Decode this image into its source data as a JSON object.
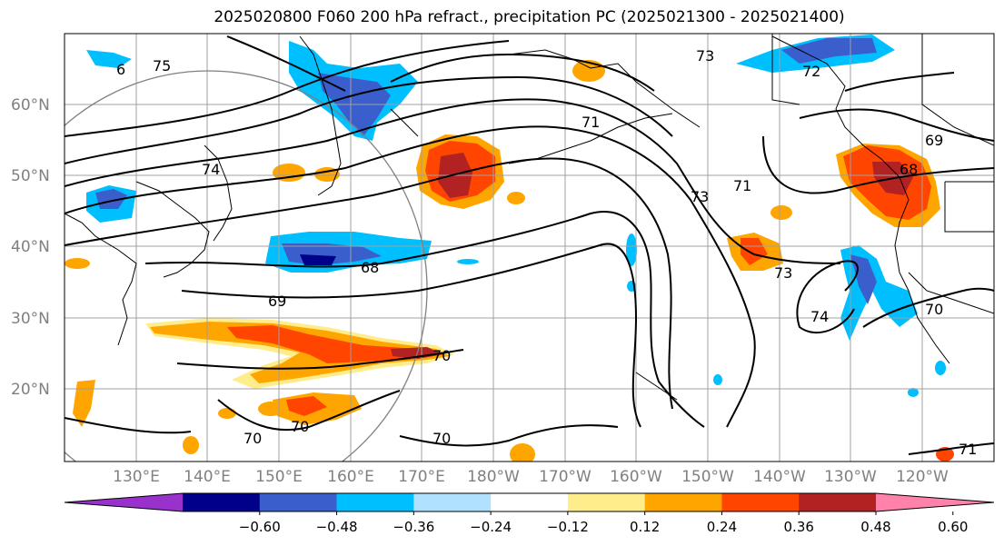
{
  "title": "2025020800 F060 200 hPa refract., precipitation PC (2025021300 - 2025021400)",
  "lat_labels": [
    "60°N",
    "50°N",
    "40°N",
    "30°N",
    "20°N"
  ],
  "lon_labels": [
    "130°E",
    "140°E",
    "150°E",
    "160°E",
    "170°E",
    "180°W",
    "170°W",
    "160°W",
    "150°W",
    "140°W",
    "130°W",
    "120°W"
  ],
  "contour_labels": [
    "6",
    "75",
    "74",
    "73",
    "72",
    "71",
    "73",
    "71",
    "69",
    "68",
    "73",
    "74",
    "70",
    "68",
    "69",
    "70",
    "70",
    "70",
    "70",
    "71"
  ],
  "colorbar": {
    "colors": [
      "#9932cc",
      "#00008b",
      "#3a5fcd",
      "#00bfff",
      "#b0e2ff",
      "#ffffff",
      "#ffec8b",
      "#ffa500",
      "#ff4500",
      "#b22222",
      "#ff82ab"
    ],
    "tick_labels": [
      "−0.60",
      "−0.48",
      "−0.36",
      "−0.24",
      "−0.12",
      "0.12",
      "0.24",
      "0.36",
      "0.48",
      "0.60"
    ]
  }
}
